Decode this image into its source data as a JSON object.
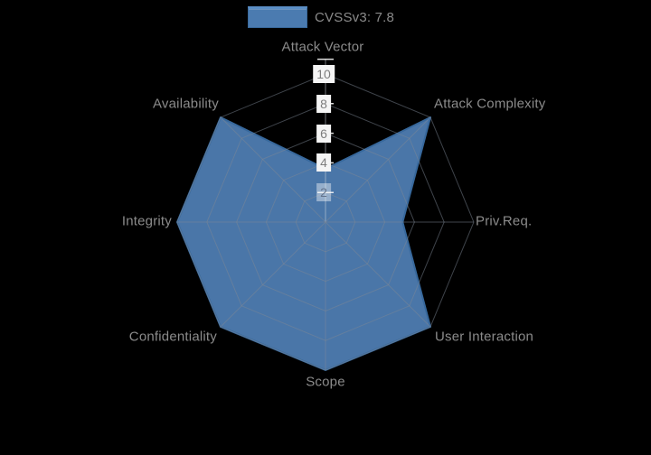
{
  "legend": {
    "label": "CVSSv3: 7.8"
  },
  "chart_data": {
    "type": "radar",
    "title": "",
    "axes": [
      "Attack Vector",
      "Attack Complexity",
      "Priv.Req.",
      "User Interaction",
      "Scope",
      "Confidentiality",
      "Integrity",
      "Availability"
    ],
    "series": [
      {
        "name": "CVSSv3: 7.8",
        "values": [
          3.6,
          10,
          5.2,
          10,
          10,
          10,
          10,
          10
        ]
      }
    ],
    "radial_ticks": [
      2,
      4,
      6,
      8,
      10
    ],
    "radial_range": [
      0,
      11
    ],
    "axes_order": "clockwise-from-top",
    "legend_position": "top-center",
    "grid": "polygonal-web",
    "colors": {
      "background": "#000000",
      "fill": "#4a76a8",
      "line": "#37689c",
      "grid": "rgba(125,135,150,0.5)",
      "radial_axis": "rgba(205,212,220,0.55)",
      "tick_dash": "rgba(245,245,245,0.9)",
      "axis_label_text": "#8b8b8b",
      "tick_text": "#7d7d7d",
      "legend_text": "#8a8a8a"
    }
  }
}
